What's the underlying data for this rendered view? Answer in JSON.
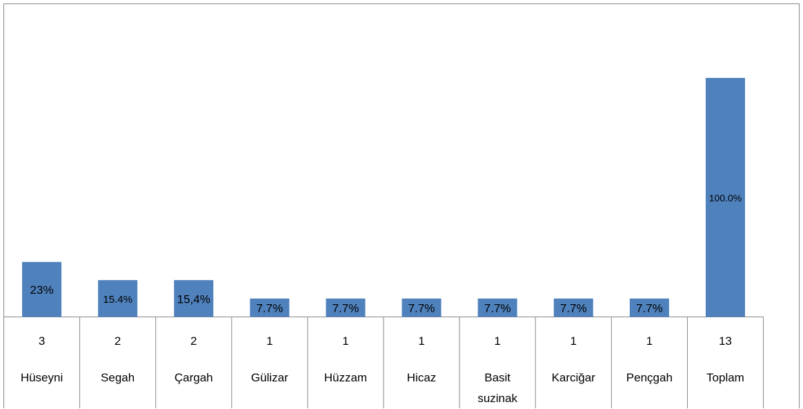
{
  "chart_data": {
    "type": "bar",
    "categories": [
      "Hüseyni",
      "Segah",
      "Çargah",
      "Gülizar",
      "Hüzzam",
      "Hicaz",
      "Basit suzinak",
      "Karciğar",
      "Pençgah",
      "Toplam"
    ],
    "counts": [
      3,
      2,
      2,
      1,
      1,
      1,
      1,
      1,
      1,
      13
    ],
    "values": [
      23,
      15.4,
      15.4,
      7.7,
      7.7,
      7.7,
      7.7,
      7.7,
      7.7,
      100
    ],
    "value_labels": [
      "23%",
      "15.4%",
      "15,4%",
      "7.7%",
      "7.7%",
      "7.7%",
      "7.7%",
      "7.7%",
      "7.7%",
      "100.0%"
    ],
    "color": "#4f81bd",
    "ylim": [
      0,
      131
    ]
  }
}
